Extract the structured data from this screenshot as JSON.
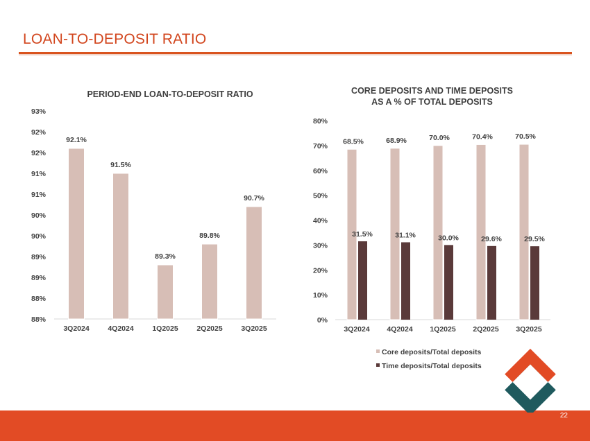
{
  "slide": {
    "title": "LOAN-TO-DEPOSIT RATIO",
    "page_number": "22"
  },
  "colors": {
    "accent": "#d9531e",
    "footer": "#e24b25",
    "bar_light": "#d7beb6",
    "bar_dark": "#5a3a3a",
    "logo_orange": "#e24b25",
    "logo_teal": "#1f5a5e"
  },
  "chart_data": [
    {
      "type": "bar",
      "title": "PERIOD-END LOAN-TO-DEPOSIT RATIO",
      "categories": [
        "3Q2024",
        "4Q2024",
        "1Q2025",
        "2Q2025",
        "3Q2025"
      ],
      "values": [
        92.1,
        91.5,
        89.3,
        89.8,
        90.7
      ],
      "data_labels": [
        "92.1%",
        "91.5%",
        "89.3%",
        "89.8%",
        "90.7%"
      ],
      "ylim": [
        88,
        93
      ],
      "ytick_labels": [
        "88%",
        "88%",
        "89%",
        "89%",
        "90%",
        "90%",
        "91%",
        "91%",
        "92%",
        "92%",
        "93%"
      ],
      "xlabel": "",
      "ylabel": ""
    },
    {
      "type": "bar",
      "title": "CORE DEPOSITS AND TIME DEPOSITS AS A % OF TOTAL DEPOSITS",
      "title_lines": [
        "CORE DEPOSITS AND TIME DEPOSITS",
        "AS A % OF TOTAL DEPOSITS"
      ],
      "categories": [
        "3Q2024",
        "4Q2024",
        "1Q2025",
        "2Q2025",
        "3Q2025"
      ],
      "series": [
        {
          "name": "Core deposits/Total deposits",
          "values": [
            68.5,
            68.9,
            70.0,
            70.4,
            70.5
          ],
          "data_labels": [
            "68.5%",
            "68.9%",
            "70.0%",
            "70.4%",
            "70.5%"
          ]
        },
        {
          "name": "Time deposits/Total deposits",
          "values": [
            31.5,
            31.1,
            30.0,
            29.6,
            29.5
          ],
          "data_labels": [
            "31.5%",
            "31.1%",
            "30.0%",
            "29.6%",
            "29.5%"
          ]
        }
      ],
      "ylim": [
        0,
        80
      ],
      "ytick_labels": [
        "0%",
        "10%",
        "20%",
        "30%",
        "40%",
        "50%",
        "60%",
        "70%",
        "80%"
      ],
      "legend": "bottom",
      "xlabel": "",
      "ylabel": ""
    }
  ]
}
